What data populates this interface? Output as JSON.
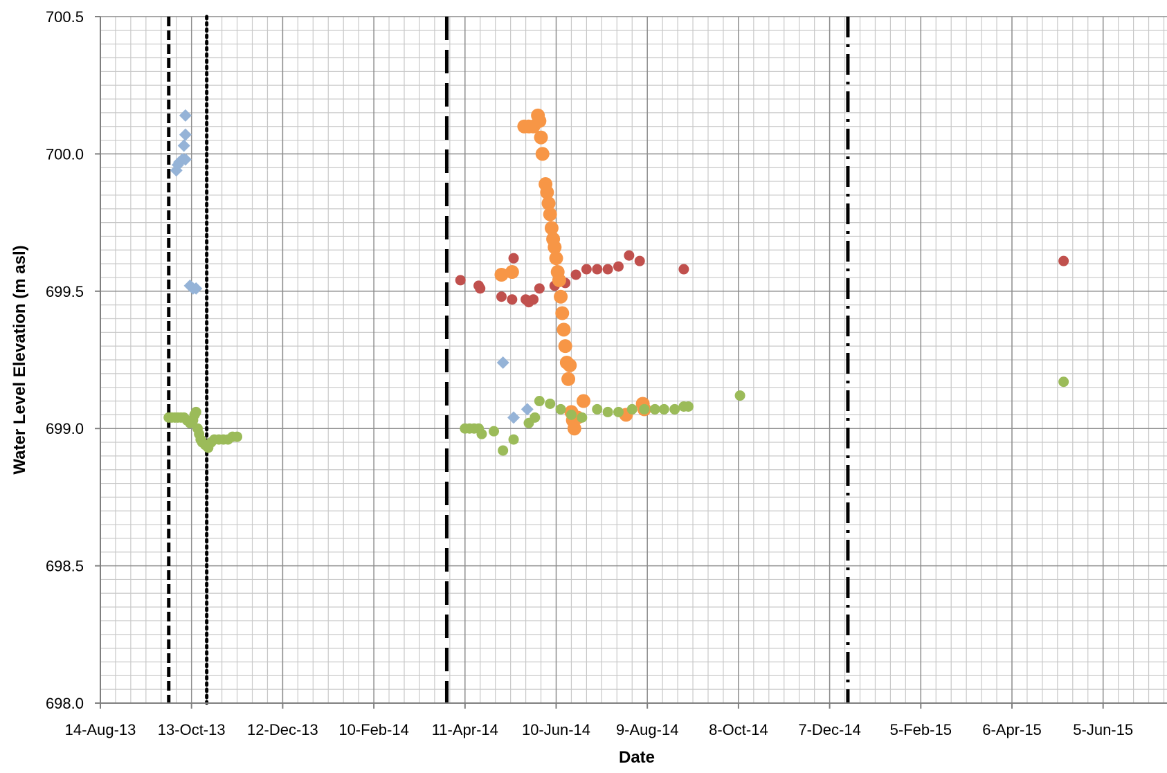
{
  "chart_data": {
    "type": "scatter",
    "title": "",
    "xlabel": "Date",
    "ylabel": "Water Level Elevation (m asl)",
    "ylim": [
      698.0,
      700.5
    ],
    "xlim": [
      "2013-08-14",
      "2015-07-28"
    ],
    "y_ticks": [
      "698.0",
      "698.5",
      "699.0",
      "699.5",
      "700.0",
      "700.5"
    ],
    "x_ticks": [
      {
        "date": "2013-08-14",
        "label": "14-Aug-13"
      },
      {
        "date": "2013-10-13",
        "label": "13-Oct-13"
      },
      {
        "date": "2013-12-12",
        "label": "12-Dec-13"
      },
      {
        "date": "2014-02-10",
        "label": "10-Feb-14"
      },
      {
        "date": "2014-04-11",
        "label": "11-Apr-14"
      },
      {
        "date": "2014-06-10",
        "label": "10-Jun-14"
      },
      {
        "date": "2014-08-09",
        "label": "9-Aug-14"
      },
      {
        "date": "2014-10-08",
        "label": "8-Oct-14"
      },
      {
        "date": "2014-12-07",
        "label": "7-Dec-14"
      },
      {
        "date": "2015-02-05",
        "label": "5-Feb-15"
      },
      {
        "date": "2015-04-06",
        "label": "6-Apr-15"
      },
      {
        "date": "2015-06-05",
        "label": "5-Jun-15"
      }
    ],
    "grid": true,
    "legend": "none",
    "vertical_lines": [
      {
        "date": "2013-09-28",
        "style": "dashed"
      },
      {
        "date": "2013-10-23",
        "style": "dotted"
      },
      {
        "date": "2014-03-30",
        "style": "long-dashed"
      },
      {
        "date": "2014-12-19",
        "style": "dash-dot"
      }
    ],
    "series": [
      {
        "marker": "diamond",
        "color": "#95B3D7",
        "points": [
          [
            "2013-10-09",
            700.14
          ],
          [
            "2013-10-09",
            700.07
          ],
          [
            "2013-10-08",
            700.03
          ],
          [
            "2013-10-09",
            699.98
          ],
          [
            "2013-10-07",
            699.98
          ],
          [
            "2013-10-05",
            699.97
          ],
          [
            "2013-10-04",
            699.96
          ],
          [
            "2013-10-03",
            699.94
          ],
          [
            "2013-10-12",
            699.52
          ],
          [
            "2013-10-14",
            699.51
          ],
          [
            "2013-10-16",
            699.51
          ],
          [
            "2014-05-06",
            699.24
          ],
          [
            "2014-05-13",
            699.04
          ],
          [
            "2014-05-22",
            699.07
          ]
        ]
      },
      {
        "marker": "circle",
        "color": "#C0504D",
        "points": [
          [
            "2014-04-08",
            699.54
          ],
          [
            "2014-04-20",
            699.52
          ],
          [
            "2014-04-21",
            699.51
          ],
          [
            "2014-05-05",
            699.48
          ],
          [
            "2014-05-12",
            699.47
          ],
          [
            "2014-05-13",
            699.62
          ],
          [
            "2014-05-21",
            699.47
          ],
          [
            "2014-05-23",
            699.46
          ],
          [
            "2014-05-26",
            699.47
          ],
          [
            "2014-05-30",
            699.51
          ],
          [
            "2014-06-09",
            699.52
          ],
          [
            "2014-06-16",
            699.53
          ],
          [
            "2014-06-23",
            699.56
          ],
          [
            "2014-06-30",
            699.58
          ],
          [
            "2014-07-07",
            699.58
          ],
          [
            "2014-07-14",
            699.58
          ],
          [
            "2014-07-21",
            699.59
          ],
          [
            "2014-07-28",
            699.63
          ],
          [
            "2014-08-04",
            699.61
          ],
          [
            "2014-09-02",
            699.58
          ],
          [
            "2015-05-10",
            699.61
          ]
        ]
      },
      {
        "marker": "circle-large",
        "color": "#F79646",
        "points": [
          [
            "2014-05-05",
            699.56
          ],
          [
            "2014-05-12",
            699.57
          ],
          [
            "2014-05-20",
            700.1
          ],
          [
            "2014-05-23",
            700.1
          ],
          [
            "2014-05-26",
            700.1
          ],
          [
            "2014-05-29",
            700.14
          ],
          [
            "2014-05-30",
            700.12
          ],
          [
            "2014-05-31",
            700.06
          ],
          [
            "2014-06-01",
            700.0
          ],
          [
            "2014-06-03",
            699.89
          ],
          [
            "2014-06-04",
            699.86
          ],
          [
            "2014-06-05",
            699.82
          ],
          [
            "2014-06-06",
            699.78
          ],
          [
            "2014-06-07",
            699.73
          ],
          [
            "2014-06-08",
            699.69
          ],
          [
            "2014-06-09",
            699.66
          ],
          [
            "2014-06-10",
            699.62
          ],
          [
            "2014-06-11",
            699.57
          ],
          [
            "2014-06-12",
            699.54
          ],
          [
            "2014-06-13",
            699.48
          ],
          [
            "2014-06-14",
            699.42
          ],
          [
            "2014-06-15",
            699.36
          ],
          [
            "2014-06-16",
            699.3
          ],
          [
            "2014-06-17",
            699.24
          ],
          [
            "2014-06-18",
            699.18
          ],
          [
            "2014-06-19",
            699.23
          ],
          [
            "2014-06-20",
            699.06
          ],
          [
            "2014-06-21",
            699.03
          ],
          [
            "2014-06-22",
            699.0
          ],
          [
            "2014-06-24",
            699.04
          ],
          [
            "2014-06-28",
            699.1
          ],
          [
            "2014-07-26",
            699.05
          ],
          [
            "2014-08-06",
            699.09
          ],
          [
            "2014-08-07",
            699.07
          ]
        ]
      },
      {
        "marker": "circle",
        "color": "#9BBB59",
        "points": [
          [
            "2013-09-28",
            699.04
          ],
          [
            "2013-09-30",
            699.04
          ],
          [
            "2013-10-02",
            699.04
          ],
          [
            "2013-10-04",
            699.04
          ],
          [
            "2013-10-06",
            699.04
          ],
          [
            "2013-10-08",
            699.04
          ],
          [
            "2013-10-10",
            699.03
          ],
          [
            "2013-10-12",
            699.02
          ],
          [
            "2013-10-14",
            699.03
          ],
          [
            "2013-10-15",
            699.05
          ],
          [
            "2013-10-16",
            699.06
          ],
          [
            "2013-10-17",
            699.0
          ],
          [
            "2013-10-18",
            698.98
          ],
          [
            "2013-10-19",
            698.96
          ],
          [
            "2013-10-20",
            698.95
          ],
          [
            "2013-10-22",
            698.94
          ],
          [
            "2013-10-24",
            698.93
          ],
          [
            "2013-10-26",
            698.95
          ],
          [
            "2013-10-28",
            698.96
          ],
          [
            "2013-10-31",
            698.96
          ],
          [
            "2013-11-03",
            698.96
          ],
          [
            "2013-11-06",
            698.96
          ],
          [
            "2013-11-09",
            698.97
          ],
          [
            "2013-11-12",
            698.97
          ],
          [
            "2014-04-11",
            699.0
          ],
          [
            "2014-04-14",
            699.0
          ],
          [
            "2014-04-17",
            699.0
          ],
          [
            "2014-04-20",
            699.0
          ],
          [
            "2014-04-22",
            698.98
          ],
          [
            "2014-04-30",
            698.99
          ],
          [
            "2014-05-06",
            698.92
          ],
          [
            "2014-05-13",
            698.96
          ],
          [
            "2014-05-23",
            699.02
          ],
          [
            "2014-05-27",
            699.04
          ],
          [
            "2014-05-30",
            699.1
          ],
          [
            "2014-06-06",
            699.09
          ],
          [
            "2014-06-13",
            699.07
          ],
          [
            "2014-06-20",
            699.05
          ],
          [
            "2014-06-27",
            699.04
          ],
          [
            "2014-07-07",
            699.07
          ],
          [
            "2014-07-14",
            699.06
          ],
          [
            "2014-07-21",
            699.06
          ],
          [
            "2014-07-30",
            699.07
          ],
          [
            "2014-08-07",
            699.07
          ],
          [
            "2014-08-14",
            699.07
          ],
          [
            "2014-08-20",
            699.07
          ],
          [
            "2014-08-27",
            699.07
          ],
          [
            "2014-09-02",
            699.08
          ],
          [
            "2014-09-05",
            699.08
          ],
          [
            "2014-10-09",
            699.12
          ],
          [
            "2015-05-10",
            699.17
          ]
        ]
      }
    ]
  }
}
